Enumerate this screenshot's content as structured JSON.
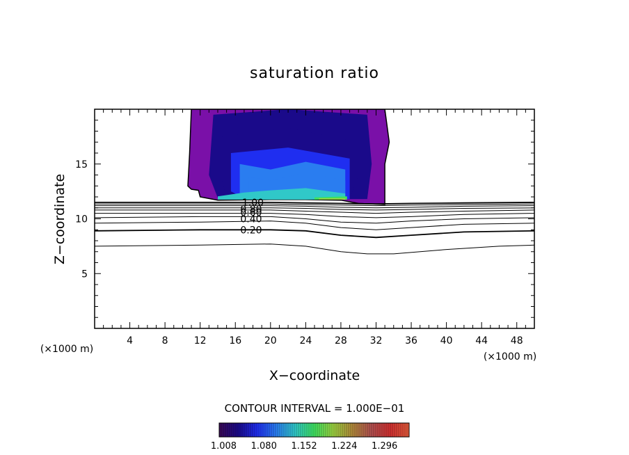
{
  "chart_data": {
    "type": "contour",
    "title": "saturation ratio",
    "xlabel": "X−coordinate",
    "ylabel": "Z−coordinate",
    "x_unit_left": "(×1000 m)",
    "x_unit_right": "(×1000 m)",
    "xlim": [
      0,
      50
    ],
    "ylim": [
      0,
      20
    ],
    "xticks": [
      4,
      8,
      12,
      16,
      20,
      24,
      28,
      32,
      36,
      40,
      44,
      48
    ],
    "yticks": [
      5,
      10,
      15
    ],
    "contour_interval_text": "CONTOUR INTERVAL = 1.000E−01",
    "contour_labels": [
      {
        "text": "1.00",
        "x": 18.0,
        "z": 11.5
      },
      {
        "text": "0.80",
        "x": 17.8,
        "z": 10.9
      },
      {
        "text": "0.60",
        "x": 17.8,
        "z": 10.6
      },
      {
        "text": "0.40",
        "x": 17.8,
        "z": 10.0
      },
      {
        "text": "0.20",
        "x": 17.8,
        "z": 9.0
      }
    ],
    "contour_lines": [
      {
        "level": 0.1,
        "points": [
          [
            0,
            7.5
          ],
          [
            12,
            7.6
          ],
          [
            20,
            7.7
          ],
          [
            24,
            7.5
          ],
          [
            28,
            7.0
          ],
          [
            31,
            6.8
          ],
          [
            34,
            6.8
          ],
          [
            40,
            7.2
          ],
          [
            46,
            7.5
          ],
          [
            50,
            7.6
          ]
        ]
      },
      {
        "level": 0.2,
        "points": [
          [
            0,
            8.9
          ],
          [
            12,
            9.0
          ],
          [
            20,
            9.0
          ],
          [
            24,
            8.9
          ],
          [
            28,
            8.5
          ],
          [
            32,
            8.3
          ],
          [
            36,
            8.5
          ],
          [
            42,
            8.8
          ],
          [
            50,
            8.9
          ]
        ]
      },
      {
        "level": 0.3,
        "points": [
          [
            0,
            9.6
          ],
          [
            12,
            9.7
          ],
          [
            20,
            9.8
          ],
          [
            24,
            9.6
          ],
          [
            28,
            9.2
          ],
          [
            32,
            9.0
          ],
          [
            36,
            9.2
          ],
          [
            42,
            9.5
          ],
          [
            50,
            9.6
          ]
        ]
      },
      {
        "level": 0.4,
        "points": [
          [
            0,
            10.1
          ],
          [
            12,
            10.2
          ],
          [
            20,
            10.2
          ],
          [
            24,
            10.0
          ],
          [
            28,
            9.7
          ],
          [
            32,
            9.6
          ],
          [
            36,
            9.8
          ],
          [
            42,
            10.0
          ],
          [
            50,
            10.1
          ]
        ]
      },
      {
        "level": 0.5,
        "points": [
          [
            0,
            10.5
          ],
          [
            12,
            10.5
          ],
          [
            20,
            10.5
          ],
          [
            24,
            10.4
          ],
          [
            28,
            10.2
          ],
          [
            32,
            10.1
          ],
          [
            36,
            10.2
          ],
          [
            42,
            10.4
          ],
          [
            50,
            10.5
          ]
        ]
      },
      {
        "level": 0.6,
        "points": [
          [
            0,
            10.8
          ],
          [
            12,
            10.8
          ],
          [
            20,
            10.8
          ],
          [
            24,
            10.7
          ],
          [
            28,
            10.6
          ],
          [
            32,
            10.5
          ],
          [
            36,
            10.6
          ],
          [
            42,
            10.7
          ],
          [
            50,
            10.8
          ]
        ]
      },
      {
        "level": 0.7,
        "points": [
          [
            0,
            11.0
          ],
          [
            12,
            11.0
          ],
          [
            20,
            11.0
          ],
          [
            24,
            10.95
          ],
          [
            28,
            10.85
          ],
          [
            32,
            10.8
          ],
          [
            36,
            10.85
          ],
          [
            42,
            10.95
          ],
          [
            50,
            11.0
          ]
        ]
      },
      {
        "level": 0.8,
        "points": [
          [
            0,
            11.2
          ],
          [
            12,
            11.2
          ],
          [
            20,
            11.2
          ],
          [
            24,
            11.15
          ],
          [
            28,
            11.05
          ],
          [
            32,
            11.0
          ],
          [
            36,
            11.05
          ],
          [
            42,
            11.15
          ],
          [
            50,
            11.2
          ]
        ]
      },
      {
        "level": 0.9,
        "points": [
          [
            0,
            11.35
          ],
          [
            12,
            11.35
          ],
          [
            20,
            11.35
          ],
          [
            24,
            11.3
          ],
          [
            28,
            11.25
          ],
          [
            32,
            11.2
          ],
          [
            36,
            11.25
          ],
          [
            42,
            11.3
          ],
          [
            50,
            11.35
          ]
        ]
      },
      {
        "level": 1.0,
        "points": [
          [
            0,
            11.5
          ],
          [
            12,
            11.5
          ],
          [
            20,
            11.5
          ],
          [
            24,
            11.45
          ],
          [
            28,
            11.4
          ],
          [
            32,
            11.35
          ],
          [
            36,
            11.4
          ],
          [
            42,
            11.45
          ],
          [
            50,
            11.5
          ]
        ]
      }
    ],
    "shaded_region": {
      "outline": [
        [
          11.0,
          20
        ],
        [
          10.8,
          16
        ],
        [
          10.6,
          13.0
        ],
        [
          11.0,
          12.7
        ],
        [
          11.8,
          12.6
        ],
        [
          12.0,
          12.0
        ],
        [
          14,
          11.7
        ],
        [
          20,
          11.75
        ],
        [
          24,
          11.75
        ],
        [
          28,
          11.7
        ],
        [
          30,
          11.4
        ],
        [
          33,
          11.3
        ],
        [
          33.0,
          15
        ],
        [
          33.5,
          17
        ],
        [
          33.0,
          20
        ]
      ],
      "layers": [
        {
          "value": 1.026,
          "outline": [
            [
              13.5,
              19.5
            ],
            [
              13.0,
              14
            ],
            [
              14,
              11.9
            ],
            [
              20,
              11.85
            ],
            [
              28,
              11.8
            ],
            [
              31,
              11.8
            ],
            [
              31.5,
              15
            ],
            [
              31,
              19.5
            ],
            [
              22,
              20
            ]
          ]
        },
        {
          "value": 1.05,
          "outline": [
            [
              14.5,
              17.5
            ],
            [
              14.5,
              13.5
            ],
            [
              15,
              11.9
            ],
            [
              22,
              11.85
            ],
            [
              29,
              11.8
            ],
            [
              30,
              14
            ],
            [
              30,
              17
            ],
            [
              22,
              18.3
            ]
          ]
        },
        {
          "value": 1.07,
          "outline": [
            [
              15.5,
              16.0
            ],
            [
              15.5,
              12.5
            ],
            [
              17,
              11.9
            ],
            [
              23,
              11.85
            ],
            [
              29,
              11.8
            ],
            [
              29,
              15.5
            ],
            [
              22,
              16.5
            ]
          ]
        },
        {
          "value": 1.09,
          "outline": [
            [
              16.5,
              15.0
            ],
            [
              16.5,
              12.2
            ],
            [
              20,
              11.9
            ],
            [
              28.5,
              11.85
            ],
            [
              28.5,
              14.5
            ],
            [
              24,
              15.2
            ],
            [
              20,
              14.5
            ]
          ]
        },
        {
          "value": 1.11,
          "outline": [
            [
              17.5,
              13.8
            ],
            [
              17.5,
              12.0
            ],
            [
              22,
              11.85
            ],
            [
              28.5,
              11.85
            ],
            [
              28.5,
              13.5
            ],
            [
              24,
              14.2
            ],
            [
              20,
              13.5
            ]
          ]
        },
        {
          "value": 1.13,
          "outline": [
            [
              14,
              12.05
            ],
            [
              14,
              11.75
            ],
            [
              28.5,
              11.75
            ],
            [
              28.5,
              12.3
            ],
            [
              24,
              12.8
            ],
            [
              20,
              12.6
            ],
            [
              17,
              12.4
            ]
          ]
        },
        {
          "value": 1.16,
          "outline": [
            [
              25,
              11.95
            ],
            [
              25,
              11.75
            ],
            [
              28.7,
              11.75
            ],
            [
              28.7,
              12.05
            ]
          ]
        },
        {
          "value": 1.2,
          "outline": [
            [
              25.5,
              11.87
            ],
            [
              25.5,
              11.75
            ],
            [
              28.5,
              11.75
            ],
            [
              28.5,
              11.87
            ]
          ]
        }
      ]
    },
    "colorbar": {
      "min": 1.0,
      "max": 1.34,
      "tick_labels": [
        "1.008",
        "1.080",
        "1.152",
        "1.224",
        "1.296"
      ],
      "colors": [
        "#3a0a55",
        "#1a0a8a",
        "#1f2ef0",
        "#2a7df0",
        "#30c8c8",
        "#3ee060",
        "#9ad040",
        "#b08a3a",
        "#b05050",
        "#d03030",
        "#e05a3a"
      ]
    }
  }
}
